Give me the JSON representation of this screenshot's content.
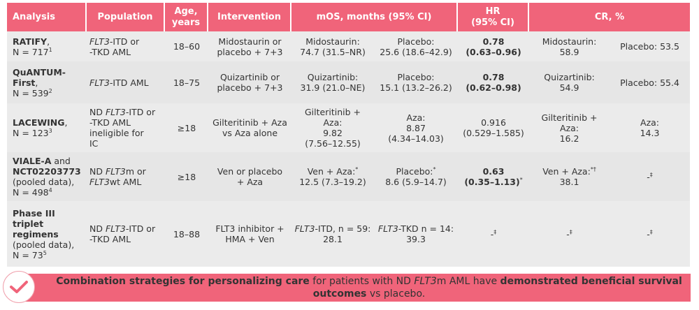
{
  "colors": {
    "accent": "#f0647a",
    "row": "#ebebeb"
  },
  "headers": [
    {
      "label": "Analysis",
      "span": 1
    },
    {
      "label": "Population",
      "span": 1
    },
    {
      "label": "Age,\nyears",
      "span": 1
    },
    {
      "label": "Intervention",
      "span": 1
    },
    {
      "label": "mOS, months (95% CI)",
      "span": 2
    },
    {
      "label": "HR\n(95% CI)",
      "span": 1
    },
    {
      "label": "CR, %",
      "span": 2
    }
  ],
  "rows": [
    {
      "cells": [
        [
          {
            "t": "RATIFY",
            "s": "b"
          },
          {
            "t": ",\nN = 717"
          },
          {
            "t": "1",
            "s": "sup"
          }
        ],
        [
          {
            "t": "FLT3",
            "s": "i"
          },
          {
            "t": "-ITD or\n-TKD AML"
          }
        ],
        [
          {
            "t": "18–60"
          }
        ],
        [
          {
            "t": "Midostaurin or\nplacebo + 7+3"
          }
        ],
        [
          {
            "t": "Midostaurin:\n74.7 (31.5–NR)"
          }
        ],
        [
          {
            "t": "Placebo:\n25.6 (18.6–42.9)"
          }
        ],
        [
          {
            "t": "0.78\n(0.63–0.96)",
            "s": "b"
          }
        ],
        [
          {
            "t": "Midostaurin:\n58.9"
          }
        ],
        [
          {
            "t": "Placebo: 53.5"
          }
        ]
      ]
    },
    {
      "cells": [
        [
          {
            "t": "QuANTUM-\nFirst",
            "s": "b"
          },
          {
            "t": ",\nN = 539"
          },
          {
            "t": "2",
            "s": "sup"
          }
        ],
        [
          {
            "t": "FLT3",
            "s": "i"
          },
          {
            "t": "-ITD AML"
          }
        ],
        [
          {
            "t": "18–75"
          }
        ],
        [
          {
            "t": "Quizartinib or\nplacebo + 7+3"
          }
        ],
        [
          {
            "t": "Quizartinib:\n31.9 (21.0–NE)"
          }
        ],
        [
          {
            "t": "Placebo:\n15.1 (13.2–26.2)"
          }
        ],
        [
          {
            "t": "0.78\n(0.62–0.98)",
            "s": "b"
          }
        ],
        [
          {
            "t": "Quizartinib:\n54.9"
          }
        ],
        [
          {
            "t": "Placebo: 55.4"
          }
        ]
      ]
    },
    {
      "cells": [
        [
          {
            "t": "LACEWING",
            "s": "b"
          },
          {
            "t": ",\nN = 123"
          },
          {
            "t": "3",
            "s": "sup"
          }
        ],
        [
          {
            "t": "ND "
          },
          {
            "t": "FLT3",
            "s": "i"
          },
          {
            "t": "-ITD or\n-TKD AML\nineligible for\nIC"
          }
        ],
        [
          {
            "t": "≥18"
          }
        ],
        [
          {
            "t": "Gilteritinib + Aza\nvs Aza alone"
          }
        ],
        [
          {
            "t": "Gilteritinib +\nAza:\n9.82\n(7.56–12.55)"
          }
        ],
        [
          {
            "t": "Aza:\n8.87\n(4.34–14.03)"
          }
        ],
        [
          {
            "t": "0.916\n(0.529–1.585)"
          }
        ],
        [
          {
            "t": "Gilteritinib +\nAza:\n16.2"
          }
        ],
        [
          {
            "t": "Aza:\n14.3"
          }
        ]
      ]
    },
    {
      "cells": [
        [
          {
            "t": "VIALE-A",
            "s": "b"
          },
          {
            "t": " and\n"
          },
          {
            "t": "NCT02203773",
            "s": "b"
          },
          {
            "t": "\n(pooled data),\nN = 498"
          },
          {
            "t": "4",
            "s": "sup"
          }
        ],
        [
          {
            "t": "ND "
          },
          {
            "t": "FLT3",
            "s": "i"
          },
          {
            "t": "m or\n"
          },
          {
            "t": "FLT3",
            "s": "i"
          },
          {
            "t": "wt AML"
          }
        ],
        [
          {
            "t": "≥18"
          }
        ],
        [
          {
            "t": "Ven or placebo\n+ Aza"
          }
        ],
        [
          {
            "t": "Ven + Aza:"
          },
          {
            "t": "*",
            "s": "sup"
          },
          {
            "t": "\n12.5 (7.3–19.2)"
          }
        ],
        [
          {
            "t": "Placebo:"
          },
          {
            "t": "*",
            "s": "sup"
          },
          {
            "t": "\n8.6 (5.9–14.7)"
          }
        ],
        [
          {
            "t": "0.63\n(0.35–1.13)",
            "s": "b"
          },
          {
            "t": "*",
            "s": "sup"
          }
        ],
        [
          {
            "t": "Ven + Aza:"
          },
          {
            "t": "*†",
            "s": "sup"
          },
          {
            "t": "\n38.1"
          }
        ],
        [
          {
            "t": "-"
          },
          {
            "t": "‡",
            "s": "sup"
          }
        ]
      ]
    },
    {
      "cells": [
        [
          {
            "t": "Phase III\ntriplet\nregimens",
            "s": "b"
          },
          {
            "t": "\n(pooled data),\nN = 73"
          },
          {
            "t": "5",
            "s": "sup"
          }
        ],
        [
          {
            "t": "ND "
          },
          {
            "t": "FLT3",
            "s": "i"
          },
          {
            "t": "-ITD or\n-TKD AML"
          }
        ],
        [
          {
            "t": "18–88"
          }
        ],
        [
          {
            "t": "FLT3 inhibitor +\nHMA + Ven"
          }
        ],
        [
          {
            "t": "FLT3",
            "s": "i"
          },
          {
            "t": "-ITD, n = 59:\n28.1"
          }
        ],
        [
          {
            "t": "FLT3",
            "s": "i"
          },
          {
            "t": "-TKD n = 14:\n39.3"
          }
        ],
        [
          {
            "t": "-"
          },
          {
            "t": "‡",
            "s": "sup"
          }
        ],
        [
          {
            "t": "-"
          },
          {
            "t": "‡",
            "s": "sup"
          }
        ],
        [
          {
            "t": "-"
          },
          {
            "t": "‡",
            "s": "sup"
          }
        ]
      ]
    }
  ],
  "banner": [
    {
      "t": "Combination strategies for personalizing care",
      "s": "b"
    },
    {
      "t": " for patients with ND "
    },
    {
      "t": "FLT3",
      "s": "i"
    },
    {
      "t": "m AML have "
    },
    {
      "t": "demonstrated beneficial survival outcomes",
      "s": "b"
    },
    {
      "t": " vs placebo."
    }
  ],
  "icons": {
    "banner": "checkmark-icon"
  }
}
